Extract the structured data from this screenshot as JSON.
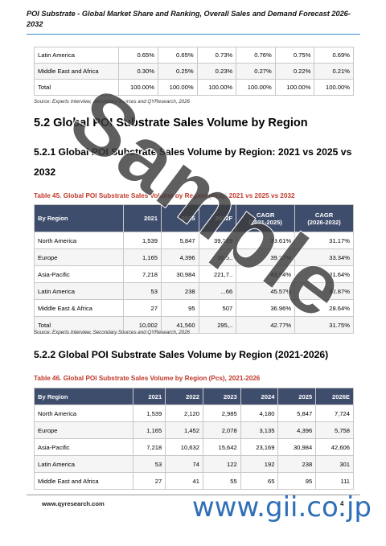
{
  "header": {
    "title": "POI Substrate - Global Market Share and Ranking, Overall Sales and Demand Forecast 2026-2032"
  },
  "top_table": {
    "rows": [
      [
        "Latin America",
        "0.65%",
        "0.65%",
        "0.73%",
        "0.76%",
        "0.75%",
        "0.69%"
      ],
      [
        "Middle East and Africa",
        "0.30%",
        "0.25%",
        "0.23%",
        "0.27%",
        "0.22%",
        "0.21%"
      ],
      [
        "Total",
        "100.00%",
        "100.00%",
        "100.00%",
        "100.00%",
        "100.00%",
        "100.00%"
      ]
    ],
    "source": "Source: Experts Interview, Secondary Sources and QYResearch, 2026"
  },
  "section": {
    "h2": "5.2  Global POI Substrate Sales Volume by Region",
    "h3a": "5.2.1  Global POI Substrate Sales Volume by Region: 2021 vs 2025 vs 2032",
    "h3b": "5.2.2  Global POI Substrate Sales Volume by Region (2021-2026)"
  },
  "table45": {
    "caption": "Table 45.   Global POI Substrate Sales Volume by Region (Pcs): 2021 vs 2025 vs 2032",
    "headers": [
      "By Region",
      "2021",
      "2025",
      "2032F"
    ],
    "cagr1": [
      "CAGR",
      "(2021-2025)"
    ],
    "cagr2": [
      "CAGR",
      "(2026-2032)"
    ],
    "rows": [
      [
        "North America",
        "1,539",
        "5,847",
        "39,339",
        "39.61%",
        "31.17%"
      ],
      [
        "Europe",
        "1,165",
        "4,396",
        "32,5..",
        "39.37%",
        "33.34%"
      ],
      [
        "Asia-Pacific",
        "7,218",
        "30,984",
        "221,7..",
        "43.94%",
        "31.64%"
      ],
      [
        "Latin America",
        "53",
        "238",
        "...66",
        "45.57%",
        "32.87%"
      ],
      [
        "Middle East & Africa",
        "27",
        "95",
        "507",
        "36.96%",
        "28.64%"
      ],
      [
        "Total",
        "10,002",
        "41,560",
        "295,..",
        "42.77%",
        "31.75%"
      ]
    ],
    "source": "Source: Experts Interview, Secondary Sources and QYResearch, 2026"
  },
  "table46": {
    "caption": "Table 46.   Global POI Substrate Sales Volume by Region (Pcs), 2021-2026",
    "headers": [
      "By Region",
      "2021",
      "2022",
      "2023",
      "2024",
      "2025",
      "2026E"
    ],
    "rows": [
      [
        "North America",
        "1,539",
        "2,120",
        "2,985",
        "4,180",
        "5,847",
        "7,724"
      ],
      [
        "Europe",
        "1,165",
        "1,452",
        "2,078",
        "3,135",
        "4,396",
        "5,758"
      ],
      [
        "Asia-Pacific",
        "7,218",
        "10,632",
        "15,642",
        "23,169",
        "30,984",
        "42,606"
      ],
      [
        "Latin America",
        "53",
        "74",
        "122",
        "192",
        "238",
        "301"
      ],
      [
        "Middle East and Africa",
        "27",
        "41",
        "55",
        "65",
        "95",
        "111"
      ]
    ]
  },
  "footer": {
    "url": "www.qyresearch.com",
    "page": "4"
  },
  "watermark": {
    "text": "Sample",
    "brand": "www.gii.co.jp"
  }
}
